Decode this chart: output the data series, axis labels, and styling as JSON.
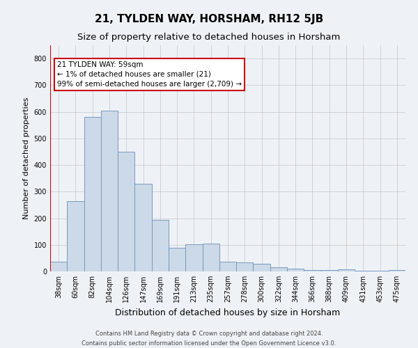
{
  "title": "21, TYLDEN WAY, HORSHAM, RH12 5JB",
  "subtitle": "Size of property relative to detached houses in Horsham",
  "xlabel": "Distribution of detached houses by size in Horsham",
  "ylabel": "Number of detached properties",
  "footer_line1": "Contains HM Land Registry data © Crown copyright and database right 2024.",
  "footer_line2": "Contains public sector information licensed under the Open Government Licence v3.0.",
  "categories": [
    "38sqm",
    "60sqm",
    "82sqm",
    "104sqm",
    "126sqm",
    "147sqm",
    "169sqm",
    "191sqm",
    "213sqm",
    "235sqm",
    "257sqm",
    "278sqm",
    "300sqm",
    "322sqm",
    "344sqm",
    "366sqm",
    "388sqm",
    "409sqm",
    "431sqm",
    "453sqm",
    "475sqm"
  ],
  "values": [
    37,
    263,
    580,
    603,
    450,
    330,
    193,
    90,
    102,
    105,
    37,
    35,
    30,
    15,
    10,
    5,
    5,
    8,
    2,
    2,
    5
  ],
  "bar_color": "#ccd9e8",
  "bar_edge_color": "#7799bb",
  "highlight_line_color": "#cc0000",
  "annotation_text": "21 TYLDEN WAY: 59sqm\n← 1% of detached houses are smaller (21)\n99% of semi-detached houses are larger (2,709) →",
  "annotation_box_color": "#ffffff",
  "annotation_box_edge_color": "#cc0000",
  "ylim": [
    0,
    850
  ],
  "yticks": [
    0,
    100,
    200,
    300,
    400,
    500,
    600,
    700,
    800
  ],
  "grid_color": "#cccccc",
  "background_color": "#eef2f7",
  "title_fontsize": 11,
  "subtitle_fontsize": 9.5,
  "xlabel_fontsize": 9,
  "ylabel_fontsize": 8,
  "tick_fontsize": 7,
  "footer_fontsize": 6,
  "annotation_fontsize": 7.5
}
